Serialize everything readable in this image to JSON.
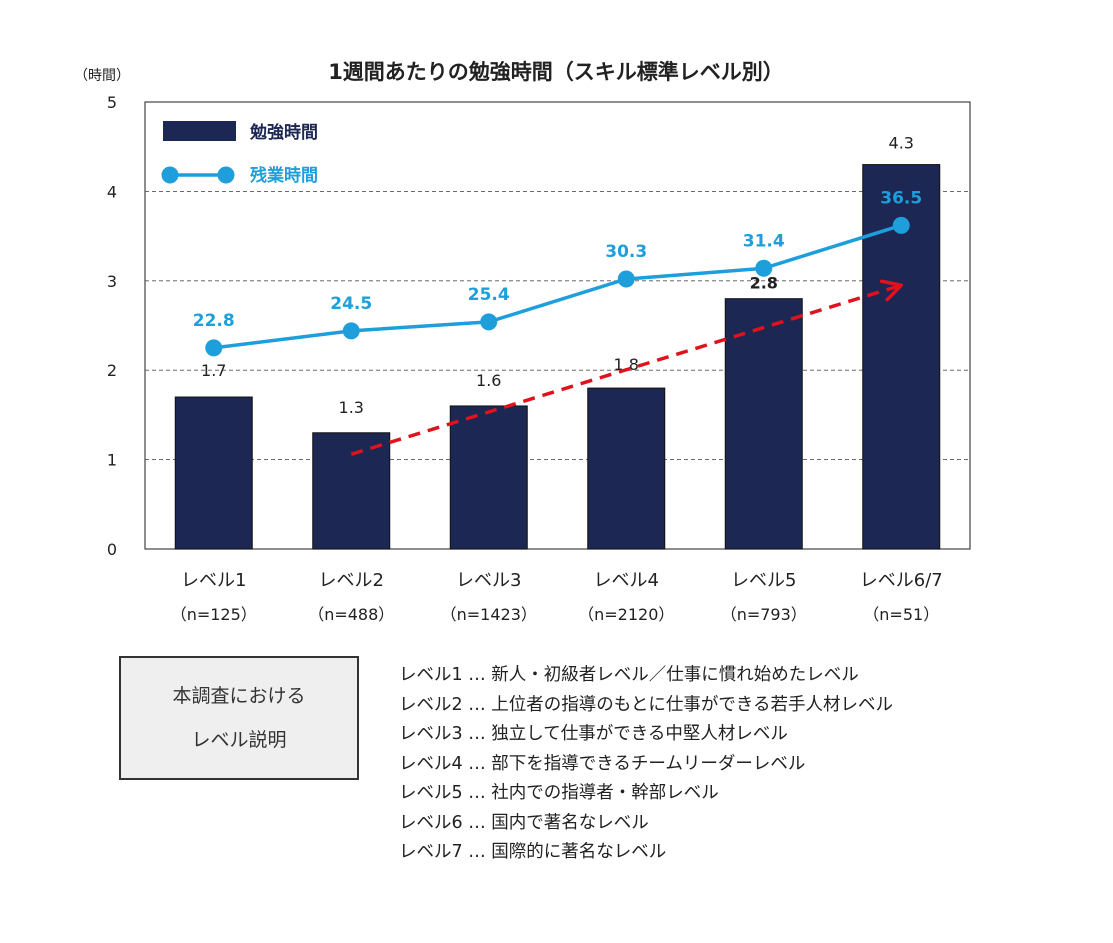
{
  "chart_data": {
    "type": "bar",
    "title": "1週間あたりの勉強時間（スキル標準レベル別）",
    "ylabel": "（時間）",
    "ylim": [
      0,
      5
    ],
    "yticks": [
      0,
      1,
      2,
      3,
      4,
      5
    ],
    "grid": true,
    "legend_position": "top-left",
    "categories": [
      "レベル1",
      "レベル2",
      "レベル3",
      "レベル4",
      "レベル5",
      "レベル6/7"
    ],
    "sample_sizes": [
      "（n=125）",
      "（n=488）",
      "（n=1423）",
      "（n=2120）",
      "（n=793）",
      "（n=51）"
    ],
    "series": [
      {
        "name": "勉強時間",
        "type": "bar",
        "values": [
          1.7,
          1.3,
          1.6,
          1.8,
          2.8,
          4.3
        ],
        "labels": [
          "1.7",
          "1.3",
          "1.6",
          "1.8",
          "2.8",
          "4.3"
        ],
        "color": "#1c2754"
      },
      {
        "name": "残業時間",
        "type": "line",
        "values": [
          22.8,
          24.5,
          25.4,
          30.3,
          31.4,
          36.5
        ],
        "labels": [
          "22.8",
          "24.5",
          "25.4",
          "30.3",
          "31.4",
          "36.5"
        ],
        "plotted_on_scale": [
          2.25,
          2.44,
          2.54,
          3.02,
          3.14,
          3.62
        ],
        "color": "#1e9fdb"
      }
    ],
    "trend_arrow": {
      "from": [
        1,
        1.06
      ],
      "to": [
        5,
        2.95
      ],
      "color": "#e0121b",
      "style": "dashed"
    }
  },
  "explanation": {
    "box_lines": [
      "本調査における",
      "レベル説明"
    ],
    "items": [
      "レベル1 … 新人・初級者レベル／仕事に慣れ始めたレベル",
      "レベル2 … 上位者の指導のもとに仕事ができる若手人材レベル",
      "レベル3 … 独立して仕事ができる中堅人材レベル",
      "レベル4 … 部下を指導できるチームリーダーレベル",
      "レベル5 … 社内での指導者・幹部レベル",
      "レベル6 … 国内で著名なレベル",
      "レベル7 … 国際的に著名なレベル"
    ]
  }
}
